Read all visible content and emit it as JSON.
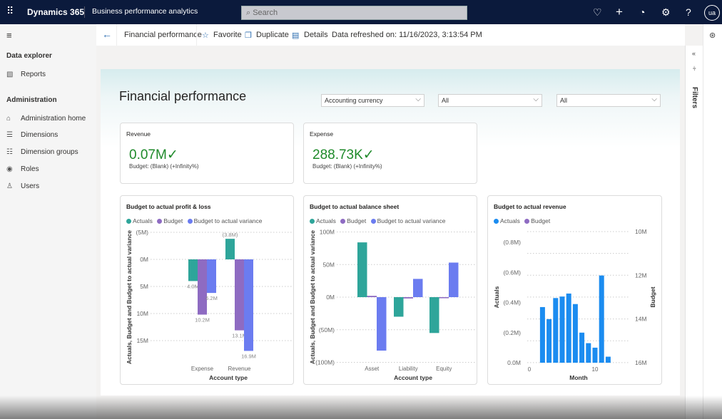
{
  "topbar": {
    "app_name": "Dynamics 365",
    "module": "Business performance analytics",
    "search_placeholder": "Search",
    "avatar": "ua",
    "icons": [
      "waffle-icon",
      "lightbulb-icon",
      "plus-icon",
      "bell-icon",
      "gear-icon",
      "help-icon"
    ]
  },
  "commandbar": {
    "back": "←",
    "breadcrumb": "Financial performance",
    "favorite": "Favorite",
    "duplicate": "Duplicate",
    "details": "Details",
    "refreshed": "Data refreshed on: 11/16/2023, 3:13:54 PM"
  },
  "sidebar": {
    "section1": "Data explorer",
    "items1": [
      {
        "label": "Reports",
        "icon": "report-icon"
      }
    ],
    "section2": "Administration",
    "items2": [
      {
        "label": "Administration home",
        "icon": "home-icon"
      },
      {
        "label": "Dimensions",
        "icon": "list-icon"
      },
      {
        "label": "Dimension groups",
        "icon": "group-list-icon"
      },
      {
        "label": "Roles",
        "icon": "roles-icon"
      },
      {
        "label": "Users",
        "icon": "user-icon"
      }
    ]
  },
  "filters_pane": {
    "label": "Filters"
  },
  "report": {
    "title": "Financial performance",
    "dropdowns": [
      {
        "value": "Accounting currency"
      },
      {
        "value": "All"
      },
      {
        "value": "All"
      }
    ],
    "kpis": [
      {
        "title": "Revenue",
        "value": "0.07M",
        "subtitle": "Budget: (Blank) (+Infinity%)"
      },
      {
        "title": "Expense",
        "value": "288.73K",
        "subtitle": "Budget: (Blank) (+Infinity%)"
      }
    ]
  },
  "colors": {
    "actuals": "#2ea59a",
    "budget": "#8e6bc2",
    "variance": "#6b7cf0",
    "revenue_actuals": "#1b8cf0",
    "kpi_green": "#1e8a2a"
  },
  "chart_data": [
    {
      "type": "bar",
      "title": "Budget to actual profit & loss",
      "xlabel": "Account type",
      "ylabel": "Actuals, Budget and Budget to actual variance",
      "legend": [
        "Actuals",
        "Budget",
        "Budget to actual variance"
      ],
      "legend_position": "top-left",
      "grid": true,
      "y_reversed": true,
      "yticks": [
        {
          "v": -5,
          "label": "(5M)"
        },
        {
          "v": 0,
          "label": "0M"
        },
        {
          "v": 5,
          "label": "5M"
        },
        {
          "v": 10,
          "label": "10M"
        },
        {
          "v": 15,
          "label": "15M"
        }
      ],
      "categories": [
        "Expense",
        "Revenue"
      ],
      "series": [
        {
          "name": "Actuals",
          "values": [
            4.0,
            -3.8
          ],
          "labels": [
            "4.0M",
            "(3.8M)"
          ]
        },
        {
          "name": "Budget",
          "values": [
            10.2,
            13.1
          ],
          "labels": [
            "10.2M",
            "13.1M"
          ]
        },
        {
          "name": "Budget to actual variance",
          "values": [
            6.2,
            16.9
          ],
          "labels": [
            "6.2M",
            "16.9M"
          ]
        }
      ]
    },
    {
      "type": "bar",
      "title": "Budget to actual balance sheet",
      "xlabel": "Account type",
      "ylabel": "Actuals, Budget and Budget to actual variance",
      "legend": [
        "Actuals",
        "Budget",
        "Budget to actual variance"
      ],
      "legend_position": "top-left",
      "grid": true,
      "yticks": [
        {
          "v": 100,
          "label": "100M"
        },
        {
          "v": 50,
          "label": "50M"
        },
        {
          "v": 0,
          "label": "0M"
        },
        {
          "v": -50,
          "label": "(50M)"
        },
        {
          "v": -100,
          "label": "(100M)"
        }
      ],
      "categories": [
        "Asset",
        "Liability",
        "Equity"
      ],
      "series": [
        {
          "name": "Actuals",
          "values": [
            84,
            -30,
            -55
          ]
        },
        {
          "name": "Budget",
          "values": [
            2,
            -2,
            0
          ]
        },
        {
          "name": "Budget to actual variance",
          "values": [
            -82,
            28,
            53
          ]
        }
      ]
    },
    {
      "type": "bar",
      "title": "Budget to actual revenue",
      "xlabel": "Month",
      "ylabel": "Actuals",
      "y2label": "Budget",
      "legend": [
        "Actuals",
        "Budget"
      ],
      "legend_position": "top-left",
      "grid": true,
      "yticks": [
        {
          "v": 0,
          "label": "0.0M"
        },
        {
          "v": 0.2,
          "label": "(0.2M)"
        },
        {
          "v": 0.4,
          "label": "(0.4M)"
        },
        {
          "v": 0.6,
          "label": "(0.6M)"
        },
        {
          "v": 0.8,
          "label": "(0.8M)"
        }
      ],
      "y2ticks": [
        "10M",
        "12M",
        "14M",
        "16M"
      ],
      "xticks": [
        {
          "v": 0,
          "label": "0"
        },
        {
          "v": 10,
          "label": "10"
        }
      ],
      "series": [
        {
          "name": "Actuals",
          "x": [
            2,
            3,
            4,
            5,
            6,
            7,
            8,
            9,
            10,
            11,
            12
          ],
          "values": [
            0.37,
            0.29,
            0.43,
            0.44,
            0.46,
            0.39,
            0.2,
            0.13,
            0.1,
            0.58,
            0.04
          ]
        }
      ]
    }
  ]
}
